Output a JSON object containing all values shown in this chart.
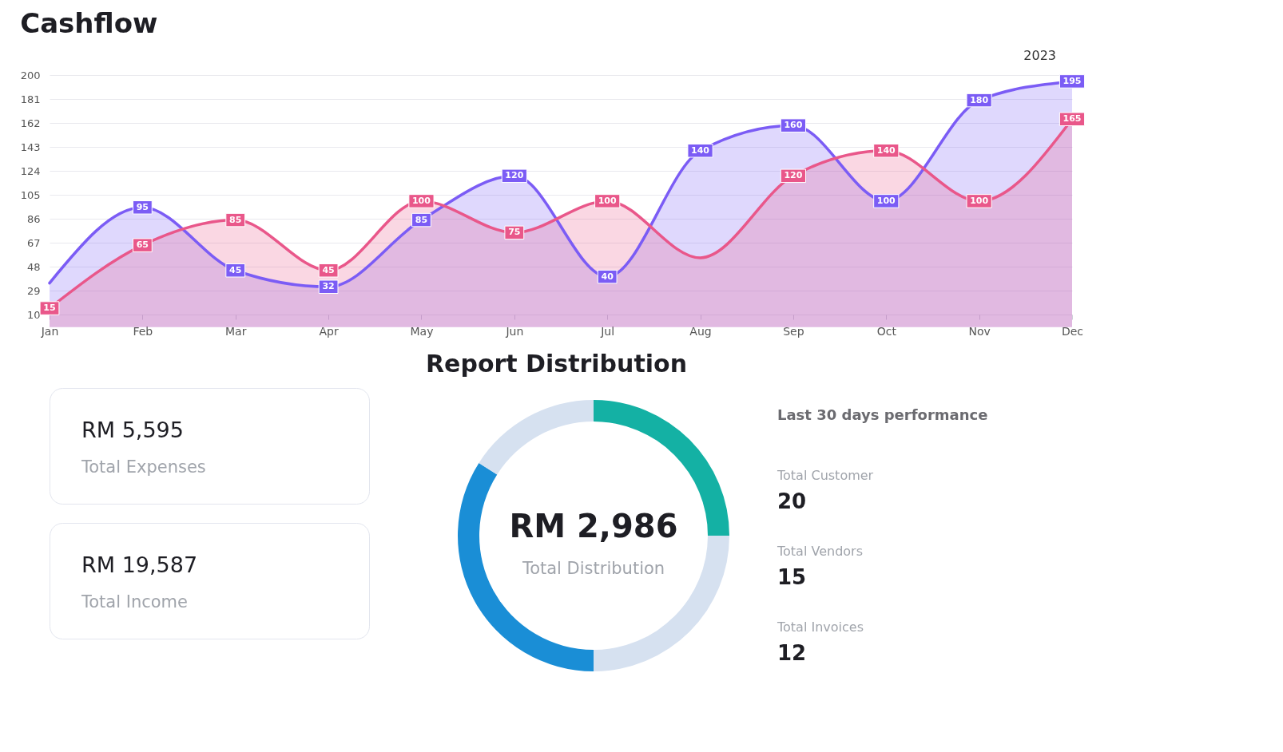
{
  "chart_data": [
    {
      "type": "area",
      "title": "Cashflow",
      "annotations": [
        "2023"
      ],
      "categories": [
        "Jan",
        "Feb",
        "Mar",
        "Apr",
        "May",
        "Jun",
        "Jul",
        "Aug",
        "Sep",
        "Oct",
        "Nov",
        "Dec"
      ],
      "series": [
        {
          "color": "#7b5cf5",
          "values": [
            35,
            95,
            45,
            32,
            85,
            120,
            40,
            140,
            160,
            100,
            180,
            195
          ],
          "value_labels": [
            null,
            "95",
            "45",
            "32",
            "85",
            "120",
            "40",
            "140",
            "160",
            "100",
            "180",
            "195"
          ]
        },
        {
          "color": "#e9578a",
          "values": [
            15,
            65,
            85,
            45,
            100,
            75,
            100,
            55,
            120,
            140,
            100,
            165
          ],
          "value_labels": [
            "15",
            "65",
            "85",
            "45",
            "100",
            "75",
            "100",
            null,
            "120",
            "140",
            "100",
            "165"
          ]
        }
      ],
      "ylim": [
        10,
        200
      ],
      "yticks": [
        10,
        29,
        48,
        67,
        86,
        105,
        124,
        143,
        162,
        181,
        200
      ],
      "grid": "y"
    },
    {
      "type": "other",
      "title": "RM 5,595",
      "subtitle": "Total Expenses"
    },
    {
      "type": "other",
      "title": "RM 19,587",
      "subtitle": "Total Income"
    },
    {
      "type": "donut",
      "title": "Report Distribution",
      "annotations": [
        "RM 2,986",
        "Total Distribution"
      ],
      "categories": [
        null,
        null,
        null,
        null
      ],
      "values": [
        25,
        25,
        34,
        16
      ],
      "colors": [
        "#14b1a4",
        "#d6e1f0",
        "#1a8ed6",
        "#d6e1f0"
      ]
    },
    {
      "type": "other",
      "title": "Last 30 days performance",
      "annotations": [
        "Total Customer",
        "20",
        "Total Vendors",
        "15",
        "Total Invoices",
        "12"
      ]
    }
  ]
}
